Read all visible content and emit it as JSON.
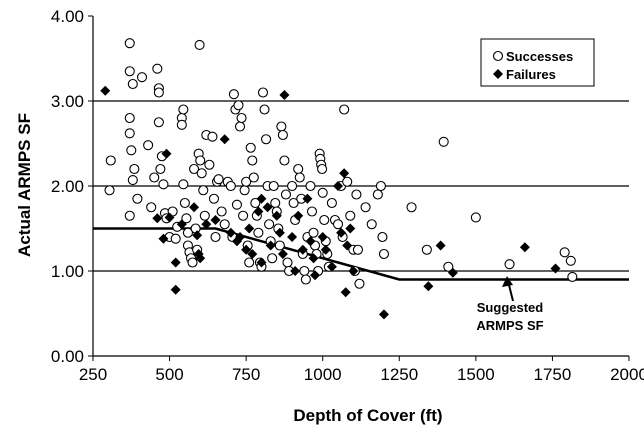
{
  "chart_data": {
    "type": "scatter",
    "xlabel": "Depth of Cover (ft)",
    "ylabel": "Actual ARMPS SF",
    "xlim": [
      250,
      2000
    ],
    "ylim": [
      0,
      4
    ],
    "x_ticks": [
      "250",
      "500",
      "750",
      "1000",
      "1250",
      "1500",
      "1750",
      "2000"
    ],
    "y_ticks": [
      "0.00",
      "1.00",
      "2.00",
      "3.00",
      "4.00"
    ],
    "grid": "horizontal",
    "legend": "top-right",
    "legend_entries": [
      "Successes",
      "Failures"
    ],
    "annotation": [
      "Suggested",
      "ARMPS SF"
    ],
    "suggested_line": [
      [
        250,
        1.5
      ],
      [
        650,
        1.5
      ],
      [
        1250,
        0.9
      ],
      [
        2000,
        0.9
      ]
    ],
    "series": [
      {
        "name": "Successes",
        "marker": "open-circle",
        "points": [
          [
            308,
            2.3
          ],
          [
            304,
            1.95
          ],
          [
            370,
            3.68
          ],
          [
            370,
            3.35
          ],
          [
            380,
            3.2
          ],
          [
            370,
            2.8
          ],
          [
            370,
            2.62
          ],
          [
            375,
            2.42
          ],
          [
            370,
            1.65
          ],
          [
            380,
            2.07
          ],
          [
            385,
            2.2
          ],
          [
            395,
            1.85
          ],
          [
            410,
            3.28
          ],
          [
            430,
            2.48
          ],
          [
            440,
            1.75
          ],
          [
            450,
            2.1
          ],
          [
            460,
            3.38
          ],
          [
            465,
            3.15
          ],
          [
            465,
            3.1
          ],
          [
            465,
            2.75
          ],
          [
            470,
            2.2
          ],
          [
            475,
            2.35
          ],
          [
            480,
            2.02
          ],
          [
            485,
            1.68
          ],
          [
            490,
            1.62
          ],
          [
            500,
            1.4
          ],
          [
            510,
            1.7
          ],
          [
            520,
            1.38
          ],
          [
            525,
            1.52
          ],
          [
            540,
            2.8
          ],
          [
            540,
            2.72
          ],
          [
            545,
            2.02
          ],
          [
            545,
            2.9
          ],
          [
            550,
            1.8
          ],
          [
            555,
            1.62
          ],
          [
            560,
            1.45
          ],
          [
            560,
            1.3
          ],
          [
            565,
            1.22
          ],
          [
            570,
            1.15
          ],
          [
            575,
            1.1
          ],
          [
            580,
            2.2
          ],
          [
            585,
            1.5
          ],
          [
            590,
            1.25
          ],
          [
            595,
            2.38
          ],
          [
            598,
            3.66
          ],
          [
            600,
            2.3
          ],
          [
            605,
            2.15
          ],
          [
            610,
            1.95
          ],
          [
            615,
            1.65
          ],
          [
            620,
            2.6
          ],
          [
            630,
            2.25
          ],
          [
            640,
            2.58
          ],
          [
            645,
            1.85
          ],
          [
            650,
            1.4
          ],
          [
            655,
            2.05
          ],
          [
            660,
            2.08
          ],
          [
            670,
            1.7
          ],
          [
            680,
            1.55
          ],
          [
            690,
            2.05
          ],
          [
            700,
            2.0
          ],
          [
            705,
            1.4
          ],
          [
            710,
            3.08
          ],
          [
            715,
            2.9
          ],
          [
            720,
            1.78
          ],
          [
            725,
            2.95
          ],
          [
            730,
            2.7
          ],
          [
            735,
            2.8
          ],
          [
            740,
            1.65
          ],
          [
            745,
            1.95
          ],
          [
            750,
            2.05
          ],
          [
            755,
            1.3
          ],
          [
            760,
            1.1
          ],
          [
            765,
            2.45
          ],
          [
            770,
            2.3
          ],
          [
            775,
            2.1
          ],
          [
            780,
            1.8
          ],
          [
            785,
            1.65
          ],
          [
            790,
            1.45
          ],
          [
            795,
            1.1
          ],
          [
            800,
            1.05
          ],
          [
            805,
            3.1
          ],
          [
            810,
            2.9
          ],
          [
            815,
            2.55
          ],
          [
            820,
            2.0
          ],
          [
            825,
            1.55
          ],
          [
            830,
            1.35
          ],
          [
            835,
            1.15
          ],
          [
            840,
            2.0
          ],
          [
            845,
            1.8
          ],
          [
            850,
            1.7
          ],
          [
            855,
            1.5
          ],
          [
            860,
            1.3
          ],
          [
            865,
            2.7
          ],
          [
            870,
            2.6
          ],
          [
            875,
            2.3
          ],
          [
            880,
            1.9
          ],
          [
            885,
            1.1
          ],
          [
            890,
            1.0
          ],
          [
            900,
            2.0
          ],
          [
            905,
            1.8
          ],
          [
            910,
            1.6
          ],
          [
            920,
            2.2
          ],
          [
            925,
            2.1
          ],
          [
            930,
            1.85
          ],
          [
            935,
            1.2
          ],
          [
            940,
            1.0
          ],
          [
            945,
            0.9
          ],
          [
            950,
            1.4
          ],
          [
            960,
            2.0
          ],
          [
            965,
            1.7
          ],
          [
            970,
            1.45
          ],
          [
            975,
            1.3
          ],
          [
            980,
            1.2
          ],
          [
            985,
            1.0
          ],
          [
            990,
            2.38
          ],
          [
            992,
            2.32
          ],
          [
            995,
            2.25
          ],
          [
            998,
            2.2
          ],
          [
            1000,
            1.92
          ],
          [
            1005,
            1.6
          ],
          [
            1010,
            1.35
          ],
          [
            1015,
            1.2
          ],
          [
            1020,
            1.05
          ],
          [
            1030,
            1.8
          ],
          [
            1040,
            1.6
          ],
          [
            1050,
            1.55
          ],
          [
            1060,
            2.0
          ],
          [
            1065,
            1.4
          ],
          [
            1070,
            2.9
          ],
          [
            1080,
            2.05
          ],
          [
            1090,
            1.65
          ],
          [
            1100,
            1.25
          ],
          [
            1105,
            1.0
          ],
          [
            1110,
            1.9
          ],
          [
            1115,
            1.25
          ],
          [
            1120,
            0.85
          ],
          [
            1140,
            1.75
          ],
          [
            1160,
            1.55
          ],
          [
            1180,
            1.9
          ],
          [
            1190,
            2.0
          ],
          [
            1195,
            1.4
          ],
          [
            1200,
            1.2
          ],
          [
            1290,
            1.75
          ],
          [
            1340,
            1.25
          ],
          [
            1395,
            2.52
          ],
          [
            1410,
            1.05
          ],
          [
            1500,
            1.63
          ],
          [
            1610,
            1.08
          ],
          [
            1790,
            1.22
          ],
          [
            1810,
            1.12
          ],
          [
            1815,
            0.93
          ]
        ]
      },
      {
        "name": "Failures",
        "marker": "filled-diamond",
        "points": [
          [
            290,
            3.12
          ],
          [
            460,
            1.62
          ],
          [
            480,
            1.38
          ],
          [
            490,
            2.38
          ],
          [
            500,
            1.63
          ],
          [
            520,
            1.1
          ],
          [
            520,
            0.78
          ],
          [
            540,
            1.55
          ],
          [
            580,
            1.75
          ],
          [
            590,
            1.42
          ],
          [
            595,
            1.2
          ],
          [
            600,
            1.15
          ],
          [
            620,
            1.55
          ],
          [
            650,
            1.6
          ],
          [
            680,
            2.55
          ],
          [
            700,
            1.45
          ],
          [
            720,
            1.35
          ],
          [
            730,
            1.4
          ],
          [
            750,
            1.25
          ],
          [
            760,
            1.5
          ],
          [
            770,
            1.2
          ],
          [
            790,
            1.7
          ],
          [
            800,
            1.85
          ],
          [
            800,
            1.1
          ],
          [
            820,
            1.75
          ],
          [
            830,
            1.3
          ],
          [
            850,
            1.65
          ],
          [
            860,
            1.45
          ],
          [
            870,
            1.2
          ],
          [
            875,
            3.07
          ],
          [
            900,
            1.4
          ],
          [
            910,
            1.0
          ],
          [
            920,
            1.65
          ],
          [
            935,
            1.25
          ],
          [
            950,
            1.85
          ],
          [
            960,
            1.35
          ],
          [
            970,
            1.15
          ],
          [
            975,
            0.95
          ],
          [
            1000,
            1.4
          ],
          [
            1010,
            1.25
          ],
          [
            1030,
            1.05
          ],
          [
            1050,
            2.0
          ],
          [
            1060,
            1.45
          ],
          [
            1070,
            2.15
          ],
          [
            1080,
            1.3
          ],
          [
            1090,
            1.5
          ],
          [
            1100,
            1.0
          ],
          [
            1075,
            0.75
          ],
          [
            1200,
            0.49
          ],
          [
            1345,
            0.82
          ],
          [
            1385,
            1.3
          ],
          [
            1425,
            0.98
          ],
          [
            1660,
            1.28
          ],
          [
            1760,
            1.03
          ]
        ]
      }
    ]
  }
}
